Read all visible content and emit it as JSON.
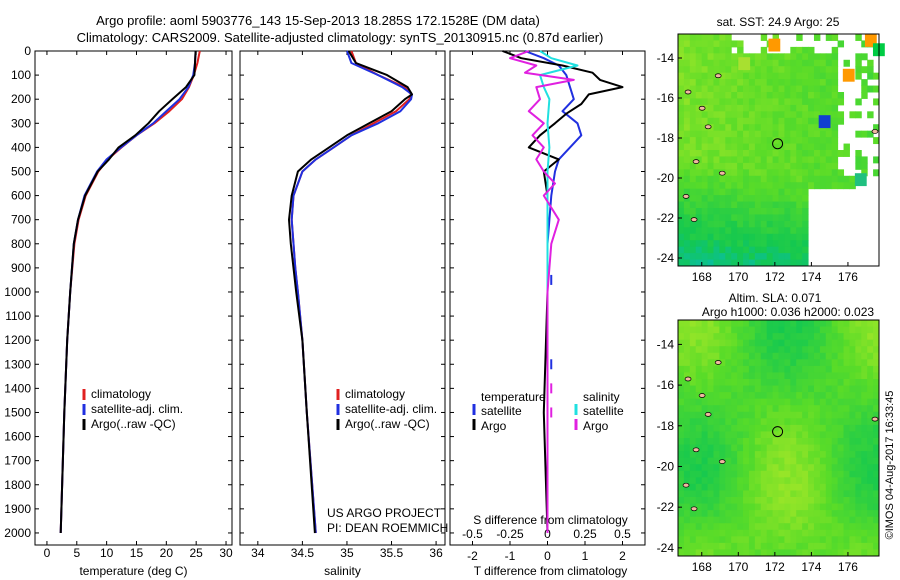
{
  "header": {
    "line1": "Argo profile: aoml 5903776_143 15-Sep-2013 18.285S 172.1528E (DM data)",
    "line2": "Climatology: CARS2009. Satellite-adjusted climatology: synTS_20130915.nc (0.87d earlier)"
  },
  "side_stamp": "©IMOS 04-Aug-2017 16:33:45",
  "colors": {
    "clim": "#e02020",
    "sat": "#2030e0",
    "argo": "#000000",
    "sat_s": "#20e0e0",
    "argo_s": "#e020e0"
  },
  "chart_data": [
    {
      "id": "temperature",
      "type": "line",
      "xlabel": "temperature (deg C)",
      "xlim": [
        -2,
        31
      ],
      "xticks": [
        0,
        5,
        10,
        15,
        20,
        25,
        30
      ],
      "ylim": [
        0,
        2050
      ],
      "yticks": [
        0,
        100,
        200,
        300,
        400,
        500,
        600,
        700,
        800,
        900,
        1000,
        1100,
        1200,
        1300,
        1400,
        1500,
        1600,
        1700,
        1800,
        1900,
        2000
      ],
      "legend": [
        "climatology",
        "satellite-adj. clim.",
        "Argo(..raw -QC)"
      ],
      "series": [
        {
          "name": "climatology",
          "color": "clim",
          "depth": [
            0,
            50,
            100,
            150,
            200,
            250,
            300,
            350,
            400,
            450,
            500,
            600,
            700,
            800,
            1000,
            1200,
            1500,
            2000
          ],
          "values": [
            25.6,
            25.2,
            24.6,
            23.8,
            22.6,
            20.5,
            18.0,
            15.0,
            12.5,
            10.2,
            8.6,
            6.5,
            5.3,
            4.6,
            3.9,
            3.4,
            2.9,
            2.3
          ]
        },
        {
          "name": "satellite-adj. clim.",
          "color": "sat",
          "depth": [
            0,
            50,
            100,
            150,
            200,
            250,
            300,
            350,
            400,
            450,
            500,
            600,
            700,
            800,
            1000,
            1200,
            1500,
            2000
          ],
          "values": [
            24.9,
            24.8,
            24.5,
            23.7,
            22.2,
            20.0,
            17.8,
            15.0,
            12.4,
            10.0,
            8.4,
            6.3,
            5.2,
            4.5,
            3.9,
            3.4,
            2.9,
            2.3
          ]
        },
        {
          "name": "Argo(..raw -QC)",
          "color": "argo",
          "depth": [
            0,
            50,
            100,
            150,
            200,
            250,
            300,
            350,
            400,
            450,
            500,
            600,
            700,
            800,
            1000,
            1200,
            1500,
            2000
          ],
          "values": [
            24.9,
            24.8,
            24.7,
            23.3,
            21.0,
            18.8,
            17.0,
            14.8,
            12.0,
            10.4,
            8.5,
            6.4,
            5.2,
            4.5,
            3.9,
            3.4,
            2.9,
            2.3
          ]
        }
      ]
    },
    {
      "id": "salinity",
      "type": "line",
      "xlabel": "salinity",
      "xlim": [
        33.8,
        36.1
      ],
      "xticks": [
        34,
        34.5,
        35,
        35.5,
        36
      ],
      "ylim": [
        0,
        2050
      ],
      "legend": [
        "climatology",
        "satellite-adj. clim.",
        "Argo(..raw -QC)"
      ],
      "note1": "US ARGO PROJECT",
      "note2": "PI: DEAN ROEMMICH",
      "series": [
        {
          "name": "climatology",
          "color": "clim",
          "depth": [
            0,
            50,
            100,
            150,
            180,
            200,
            250,
            300,
            350,
            400,
            450,
            500,
            600,
            700,
            800,
            900,
            1000,
            1200,
            1500,
            2000
          ],
          "values": [
            35.05,
            35.1,
            35.35,
            35.65,
            35.72,
            35.7,
            35.55,
            35.3,
            35.05,
            34.85,
            34.65,
            34.5,
            34.4,
            34.38,
            34.4,
            34.42,
            34.45,
            34.5,
            34.55,
            34.65
          ]
        },
        {
          "name": "satellite-adj. clim.",
          "color": "sat",
          "depth": [
            0,
            50,
            100,
            150,
            180,
            200,
            250,
            300,
            350,
            400,
            450,
            500,
            600,
            700,
            800,
            900,
            1000,
            1200,
            1500,
            2000
          ],
          "values": [
            35.0,
            35.05,
            35.35,
            35.62,
            35.73,
            35.72,
            35.6,
            35.35,
            35.05,
            34.85,
            34.65,
            34.5,
            34.4,
            34.38,
            34.4,
            34.42,
            34.45,
            34.5,
            34.55,
            34.65
          ]
        },
        {
          "name": "Argo(..raw -QC)",
          "color": "argo",
          "depth": [
            0,
            50,
            100,
            150,
            180,
            200,
            250,
            300,
            350,
            400,
            450,
            500,
            600,
            700,
            800,
            900,
            1000,
            1200,
            1500,
            2000
          ],
          "values": [
            35.02,
            35.1,
            35.45,
            35.68,
            35.73,
            35.65,
            35.5,
            35.25,
            35.0,
            34.8,
            34.6,
            34.45,
            34.38,
            34.35,
            34.37,
            34.4,
            34.43,
            34.5,
            34.55,
            34.64
          ]
        }
      ]
    },
    {
      "id": "differences",
      "type": "line",
      "xlabel_t": "T difference from climatology",
      "xlabel_s": "S difference from climatology",
      "xlim": [
        -2.6,
        2.6
      ],
      "xticks": [
        -2,
        -1,
        0,
        1,
        2
      ],
      "xticklabels": [
        "-2",
        "-1",
        "0",
        "1",
        "2"
      ],
      "sticks_pos": [
        -2.0,
        -1.0,
        0,
        1.0,
        2.0
      ],
      "sticklabels": [
        "-0.5",
        "-0.25",
        "0",
        "0.25",
        "0.5"
      ],
      "ylim": [
        0,
        2050
      ],
      "legend": {
        "temperature": "temperature",
        "salinity": "salinity",
        "satellite": "satellite",
        "argo": "Argo"
      },
      "series": [
        {
          "name": "T satellite",
          "color": "sat",
          "depth": [
            0,
            30,
            60,
            100,
            150,
            200,
            250,
            300,
            350,
            400,
            450,
            500,
            600,
            700,
            800,
            1000,
            1500,
            2000
          ],
          "values": [
            -0.6,
            -0.1,
            0.3,
            0.5,
            0.6,
            0.7,
            0.4,
            0.8,
            0.9,
            0.6,
            0.3,
            0.2,
            0.1,
            0.05,
            0.0,
            0.0,
            0.0,
            0.0
          ]
        },
        {
          "name": "T Argo",
          "color": "argo",
          "depth": [
            0,
            30,
            60,
            90,
            120,
            150,
            180,
            220,
            260,
            300,
            350,
            400,
            450,
            500,
            600,
            700,
            800,
            1000,
            1500,
            2000
          ],
          "values": [
            -1.2,
            -0.7,
            0.4,
            1.2,
            1.4,
            2.0,
            1.1,
            0.9,
            0.5,
            0.2,
            -0.2,
            -0.5,
            0.3,
            -0.1,
            0.0,
            0.0,
            0.0,
            0.0,
            -0.1,
            0.0
          ]
        },
        {
          "name": "S satellite",
          "color": "sat_s",
          "depth": [
            0,
            30,
            60,
            100,
            150,
            200,
            300,
            400,
            500,
            700,
            1000,
            1500,
            2000
          ],
          "values": [
            -0.2,
            0.1,
            0.8,
            -0.2,
            -0.1,
            0.05,
            0.0,
            0.05,
            0.0,
            0.0,
            0.0,
            0.0,
            0.0
          ]
        },
        {
          "name": "S Argo",
          "color": "argo_s",
          "depth": [
            0,
            30,
            60,
            90,
            120,
            150,
            200,
            250,
            300,
            350,
            400,
            450,
            500,
            550,
            600,
            700,
            800,
            1000,
            1500,
            2000
          ],
          "values": [
            -0.5,
            -1.0,
            -0.3,
            -0.6,
            0.7,
            -0.3,
            -0.2,
            -0.5,
            -0.1,
            -0.4,
            -0.1,
            -0.3,
            -0.1,
            0.2,
            -0.1,
            0.3,
            0.1,
            0.0,
            0.0,
            0.0
          ]
        }
      ]
    },
    {
      "id": "sst_map",
      "type": "heatmap",
      "title": "sat. SST: 24.9  Argo: 25",
      "xticks": [
        168,
        170,
        172,
        174,
        176
      ],
      "yticks": [
        -14,
        -16,
        -18,
        -20,
        -22,
        -24
      ],
      "xlim": [
        166.7,
        177.7
      ],
      "ylim": [
        -24.4,
        -12.8
      ],
      "marker": {
        "lon": 172.15,
        "lat": -18.285
      }
    },
    {
      "id": "sla_map",
      "type": "heatmap",
      "title1": "Altim. SLA: 0.071",
      "title2": "Argo h1000: 0.036 h2000: 0.023",
      "xticks": [
        168,
        170,
        172,
        174,
        176
      ],
      "yticks": [
        -14,
        -16,
        -18,
        -20,
        -22,
        -24
      ],
      "xlim": [
        166.7,
        177.7
      ],
      "ylim": [
        -24.4,
        -12.8
      ],
      "marker": {
        "lon": 172.15,
        "lat": -18.285
      }
    }
  ]
}
